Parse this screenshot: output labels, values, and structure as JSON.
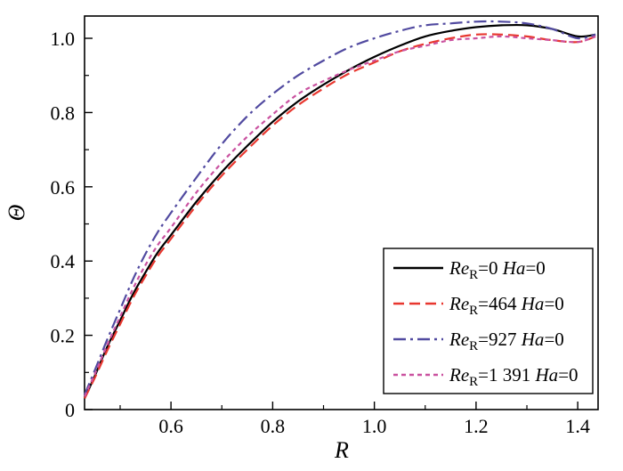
{
  "chart_data": {
    "type": "line",
    "title": "",
    "xlabel": "R",
    "ylabel": "Θ",
    "xlim": [
      0.43,
      1.44
    ],
    "ylim": [
      0,
      1.06
    ],
    "grid": false,
    "legend_position": "lower right",
    "x_major_ticks": [
      0.6,
      0.8,
      1.0,
      1.2,
      1.4
    ],
    "x_minor_ticks": [
      0.5,
      0.7,
      0.9,
      1.1,
      1.3
    ],
    "x_tick_labels": [
      "0.6",
      "0.8",
      "1.0",
      "1.2",
      "1.4"
    ],
    "y_major_ticks": [
      0,
      0.2,
      0.4,
      0.6,
      0.8,
      1.0
    ],
    "y_minor_ticks": [
      0.1,
      0.3,
      0.5,
      0.7,
      0.9
    ],
    "y_tick_labels": [
      "0",
      "0.2",
      "0.4",
      "0.6",
      "0.8",
      "1.0"
    ],
    "x": [
      0.43,
      0.45,
      0.475,
      0.5,
      0.525,
      0.55,
      0.575,
      0.6,
      0.65,
      0.7,
      0.75,
      0.8,
      0.85,
      0.9,
      0.95,
      1.0,
      1.05,
      1.1,
      1.15,
      1.2,
      1.25,
      1.3,
      1.35,
      1.4,
      1.435
    ],
    "series": [
      {
        "re_value": "0",
        "ha_value": "0",
        "color": "#000000",
        "line_style": "solid",
        "values": [
          0.03,
          0.09,
          0.17,
          0.24,
          0.31,
          0.37,
          0.425,
          0.47,
          0.56,
          0.64,
          0.71,
          0.775,
          0.83,
          0.875,
          0.915,
          0.95,
          0.98,
          1.005,
          1.02,
          1.03,
          1.035,
          1.035,
          1.025,
          1.005,
          1.01
        ]
      },
      {
        "re_value": "464",
        "ha_value": "0",
        "color": "#e8372f",
        "line_style": "dashed",
        "values": [
          0.03,
          0.085,
          0.16,
          0.23,
          0.3,
          0.36,
          0.415,
          0.46,
          0.55,
          0.63,
          0.7,
          0.765,
          0.82,
          0.865,
          0.905,
          0.935,
          0.965,
          0.985,
          1.0,
          1.01,
          1.01,
          1.005,
          0.995,
          0.99,
          1.005
        ]
      },
      {
        "re_value": "927",
        "ha_value": "0",
        "color": "#514aa0",
        "line_style": "dash-dot",
        "values": [
          0.04,
          0.105,
          0.19,
          0.27,
          0.35,
          0.42,
          0.48,
          0.53,
          0.625,
          0.715,
          0.79,
          0.85,
          0.9,
          0.94,
          0.975,
          1.0,
          1.02,
          1.035,
          1.04,
          1.045,
          1.045,
          1.04,
          1.025,
          1.0,
          1.01
        ]
      },
      {
        "re_value": "1 391",
        "ha_value": "0",
        "color": "#ca52a0",
        "line_style": "short-dash",
        "values": [
          0.035,
          0.095,
          0.175,
          0.25,
          0.325,
          0.39,
          0.445,
          0.49,
          0.585,
          0.665,
          0.735,
          0.795,
          0.85,
          0.885,
          0.915,
          0.94,
          0.965,
          0.98,
          0.995,
          1.0,
          1.005,
          1.0,
          0.995,
          0.99,
          1.005
        ]
      }
    ]
  },
  "legend": {
    "re_symbol": "Re",
    "re_subscript": "R",
    "ha_symbol": "Ha",
    "equals": "="
  }
}
